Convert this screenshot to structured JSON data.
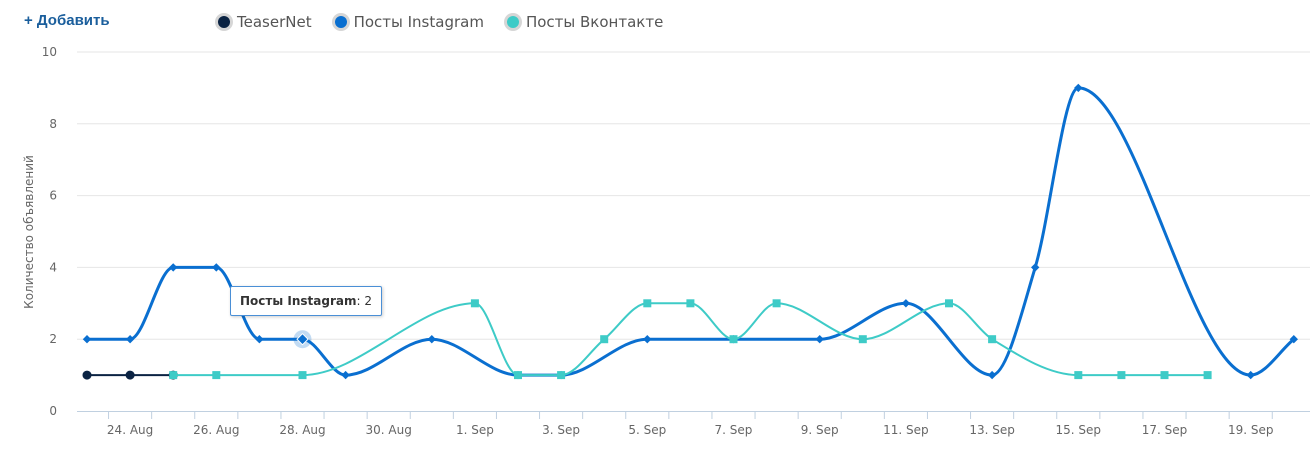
{
  "toolbar": {
    "add_label": "+ Добавить"
  },
  "colors": {
    "teasernet": "#0b2343",
    "instagram": "#0a6fd0",
    "vkontakte": "#3ecbc7",
    "grid": "#e6e6e6",
    "axis": "#c0d0e0"
  },
  "tooltip": {
    "series": "Посты Instagram",
    "value": "2"
  },
  "chart_data": {
    "type": "line",
    "ylabel": "Количество объявлений",
    "xlabel": "",
    "ylim": [
      0,
      10
    ],
    "yticks": [
      0,
      2,
      4,
      6,
      8,
      10
    ],
    "grid": true,
    "legend_position": "top",
    "x_dates": [
      "23. Aug",
      "24. Aug",
      "25. Aug",
      "26. Aug",
      "27. Aug",
      "28. Aug",
      "29. Aug",
      "30. Aug",
      "31. Aug",
      "1. Sep",
      "2. Sep",
      "3. Sep",
      "4. Sep",
      "5. Sep",
      "6. Sep",
      "7. Sep",
      "8. Sep",
      "9. Sep",
      "10. Sep",
      "11. Sep",
      "12. Sep",
      "13. Sep",
      "14. Sep",
      "15. Sep",
      "16. Sep",
      "17. Sep",
      "18. Sep",
      "19. Sep",
      "20. Sep"
    ],
    "tick_labels": [
      "24. Aug",
      "26. Aug",
      "28. Aug",
      "30. Aug",
      "1. Sep",
      "3. Sep",
      "5. Sep",
      "7. Sep",
      "9. Sep",
      "11. Sep",
      "13. Sep",
      "15. Sep",
      "17. Sep",
      "19. Sep"
    ],
    "series": [
      {
        "name": "TeaserNet",
        "key": "teasernet",
        "marker": "circle",
        "width": 2,
        "points": [
          [
            "23. Aug",
            1
          ],
          [
            "24. Aug",
            1
          ],
          [
            "25. Aug",
            1
          ]
        ]
      },
      {
        "name": "Посты Instagram",
        "key": "instagram",
        "marker": "diamond",
        "width": 3,
        "points": [
          [
            "23. Aug",
            2
          ],
          [
            "24. Aug",
            2
          ],
          [
            "25. Aug",
            4
          ],
          [
            "26. Aug",
            4
          ],
          [
            "27. Aug",
            2
          ],
          [
            "28. Aug",
            2
          ],
          [
            "29. Aug",
            1
          ],
          [
            "31. Aug",
            2
          ],
          [
            "2. Sep",
            1
          ],
          [
            "3. Sep",
            1
          ],
          [
            "5. Sep",
            2
          ],
          [
            "7. Sep",
            2
          ],
          [
            "9. Sep",
            2
          ],
          [
            "11. Sep",
            3
          ],
          [
            "13. Sep",
            1
          ],
          [
            "14. Sep",
            4
          ],
          [
            "15. Sep",
            9
          ],
          [
            "19. Sep",
            1
          ],
          [
            "20. Sep",
            2
          ]
        ]
      },
      {
        "name": "Посты Вконтакте",
        "key": "vkontakte",
        "marker": "square",
        "width": 2,
        "points": [
          [
            "25. Aug",
            1
          ],
          [
            "26. Aug",
            1
          ],
          [
            "28. Aug",
            1
          ],
          [
            "1. Sep",
            3
          ],
          [
            "2. Sep",
            1
          ],
          [
            "3. Sep",
            1
          ],
          [
            "4. Sep",
            2
          ],
          [
            "5. Sep",
            3
          ],
          [
            "6. Sep",
            3
          ],
          [
            "7. Sep",
            2
          ],
          [
            "8. Sep",
            3
          ],
          [
            "10. Sep",
            2
          ],
          [
            "12. Sep",
            3
          ],
          [
            "13. Sep",
            2
          ],
          [
            "15. Sep",
            1
          ],
          [
            "16. Sep",
            1
          ],
          [
            "17. Sep",
            1
          ],
          [
            "18. Sep",
            1
          ]
        ]
      }
    ]
  }
}
